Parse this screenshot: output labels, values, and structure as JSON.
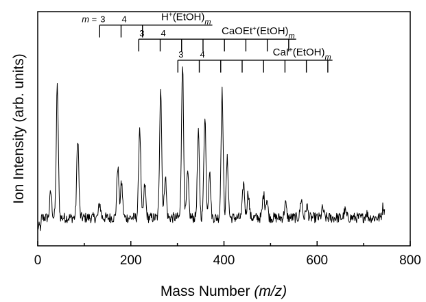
{
  "chart_data": {
    "type": "line",
    "xlabel_main": "Mass Number ",
    "xlabel_italic": "(m/z)",
    "ylabel": "Ion Intensity (arb. units)",
    "xlim": [
      0,
      800
    ],
    "x_ticks": [
      0,
      200,
      400,
      600,
      800
    ],
    "x_tick_labels": [
      "0",
      "200",
      "400",
      "600",
      "800"
    ],
    "x_range_data": [
      0,
      745
    ],
    "baseline": 0.12,
    "noise": 0.045,
    "peaks": [
      {
        "x": 28,
        "y": 0.23
      },
      {
        "x": 42,
        "y": 0.68
      },
      {
        "x": 86,
        "y": 0.46
      },
      {
        "x": 133,
        "y": 0.18
      },
      {
        "x": 172,
        "y": 0.34
      },
      {
        "x": 180,
        "y": 0.27
      },
      {
        "x": 219,
        "y": 0.51
      },
      {
        "x": 230,
        "y": 0.26
      },
      {
        "x": 264,
        "y": 0.68
      },
      {
        "x": 274,
        "y": 0.3
      },
      {
        "x": 311,
        "y": 0.78
      },
      {
        "x": 322,
        "y": 0.31
      },
      {
        "x": 345,
        "y": 0.48
      },
      {
        "x": 359,
        "y": 0.56
      },
      {
        "x": 369,
        "y": 0.32
      },
      {
        "x": 396,
        "y": 0.66
      },
      {
        "x": 407,
        "y": 0.37
      },
      {
        "x": 442,
        "y": 0.27
      },
      {
        "x": 452,
        "y": 0.23
      },
      {
        "x": 485,
        "y": 0.22
      },
      {
        "x": 492,
        "y": 0.2
      },
      {
        "x": 532,
        "y": 0.18
      },
      {
        "x": 566,
        "y": 0.2
      },
      {
        "x": 578,
        "y": 0.17
      },
      {
        "x": 612,
        "y": 0.16
      },
      {
        "x": 660,
        "y": 0.15
      },
      {
        "x": 706,
        "y": 0.14
      },
      {
        "x": 742,
        "y": 0.17
      }
    ],
    "series_annotations": [
      {
        "prefix": "H",
        "sup": "+",
        "formula": "(EtOH)",
        "sub": "m",
        "m_prefix": "m = ",
        "start": 133,
        "step": 46,
        "count": 3,
        "end": 375,
        "level": 0.89,
        "labels": [
          {
            "m": "3",
            "index": 0
          },
          {
            "m": "4",
            "index": 1
          }
        ]
      },
      {
        "prefix": "CaOEt",
        "sup": "+",
        "formula": "(EtOH)",
        "sub": "m",
        "m_prefix": "",
        "start": 217,
        "step": 46,
        "count": 8,
        "end": 555,
        "level": 0.83,
        "labels": [
          {
            "m": "3",
            "index": 0
          },
          {
            "m": "4",
            "index": 1
          }
        ]
      },
      {
        "prefix": "CaI",
        "sup": "+",
        "formula": "(EtOH)",
        "sub": "m",
        "m_prefix": "",
        "start": 301,
        "step": 46,
        "count": 8,
        "end": 633,
        "level": 0.74,
        "labels": [
          {
            "m": "3",
            "index": 0
          },
          {
            "m": "4",
            "index": 1
          }
        ]
      }
    ],
    "grid": false,
    "legend": "none"
  }
}
